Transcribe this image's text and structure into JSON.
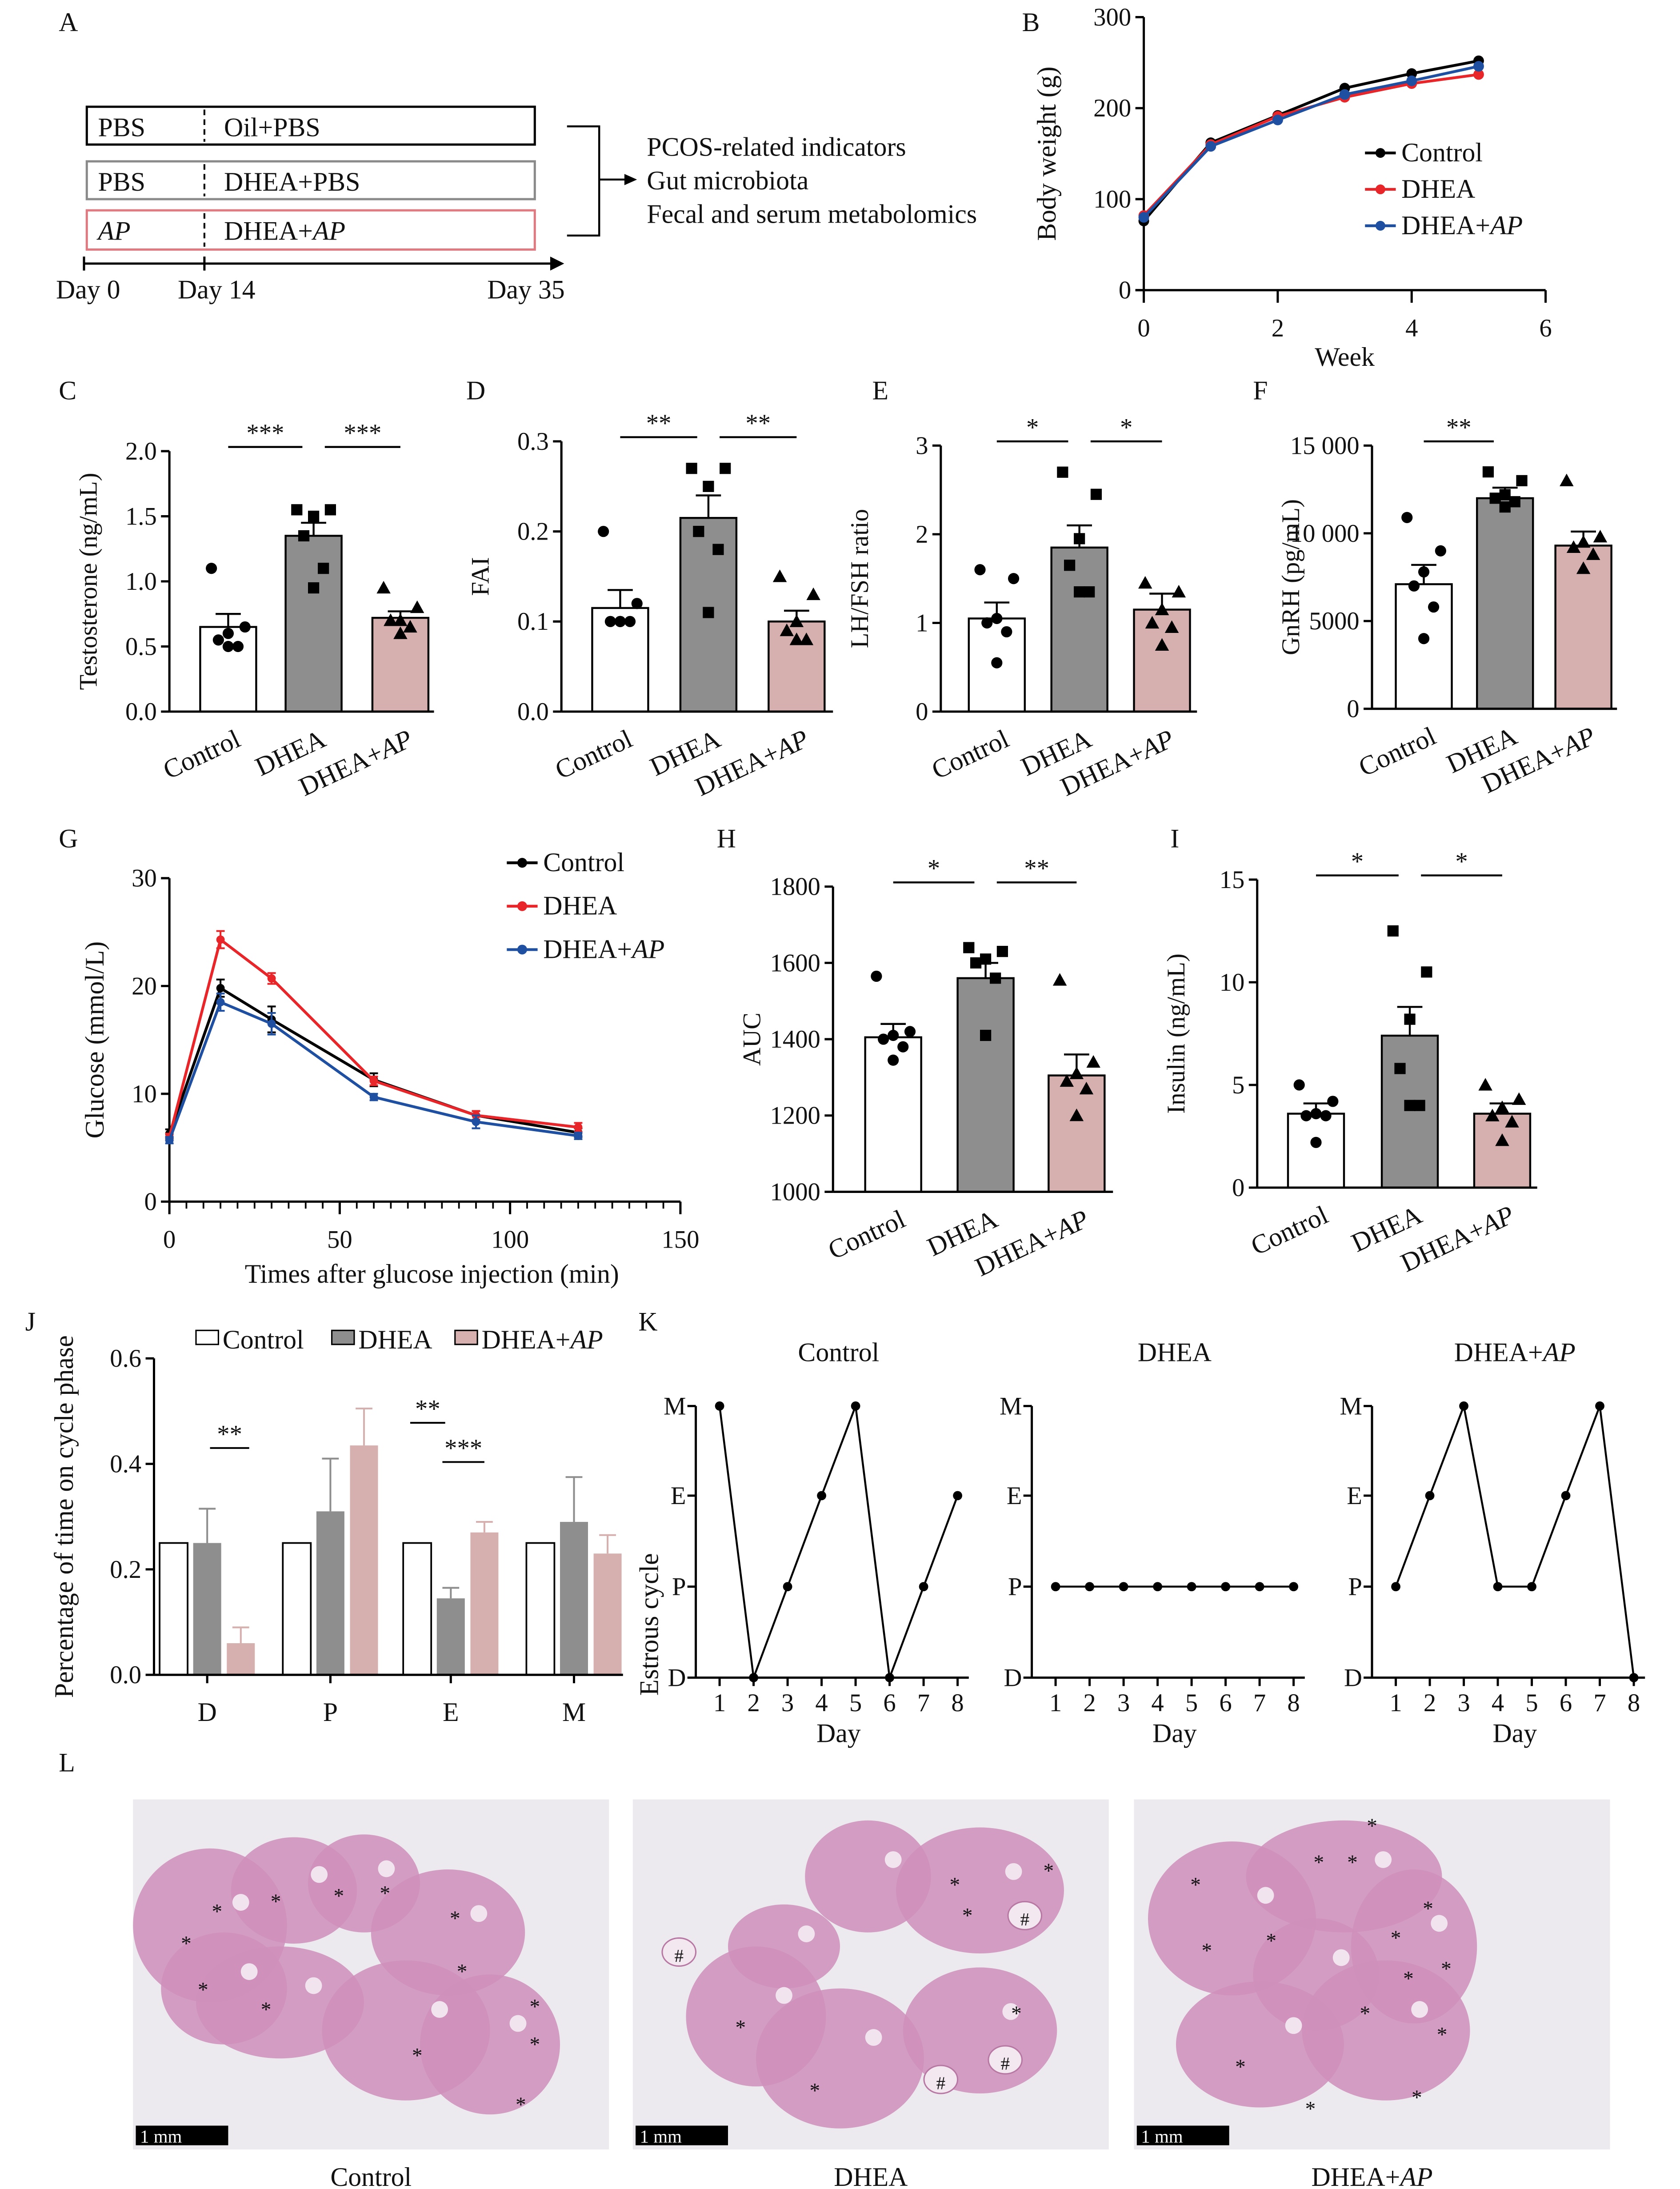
{
  "panel_letters": [
    "A",
    "B",
    "C",
    "D",
    "E",
    "F",
    "G",
    "H",
    "I",
    "J",
    "K",
    "L"
  ],
  "group_colors": {
    "Control": "#ffffff",
    "DHEA": "#8e8e8e",
    "DHEA+AP": "#d6b0ae"
  },
  "line_colors": {
    "Control": "#000000",
    "DHEA": "#e8262a",
    "DHEA+AP": "#1f4fa0"
  },
  "panel_a": {
    "rows": [
      {
        "pre": "PBS",
        "treat": "Oil+PBS",
        "border": "#000000"
      },
      {
        "pre": "PBS",
        "treat": "DHEA+PBS",
        "border": "#8a8a8a"
      },
      {
        "pre": "AP",
        "treat": "DHEA+AP",
        "border": "#e07a80"
      }
    ],
    "timeline": [
      "Day 0",
      "Day 14",
      "Day 35"
    ],
    "outcomes": [
      "PCOS-related indicators",
      "Gut microbiota",
      "Fecal and serum metabolomics"
    ]
  },
  "chart_data": [
    {
      "panel": "B",
      "type": "line",
      "xlabel": "Week",
      "ylabel": "Body weight (g)",
      "xlim": [
        0,
        6
      ],
      "ylim": [
        0,
        300
      ],
      "xticks": [
        0,
        2,
        4,
        6
      ],
      "xtick_labels": [
        "0",
        "2",
        "4",
        "6"
      ],
      "yticks": [
        0,
        100,
        200,
        300
      ],
      "ytick_labels": [
        "0",
        "100",
        "200",
        "300"
      ],
      "legend": "right",
      "x": [
        0,
        1,
        2,
        3,
        4,
        5
      ],
      "series": [
        {
          "name": "Control",
          "values": [
            76,
            162,
            192,
            222,
            238,
            252
          ]
        },
        {
          "name": "DHEA",
          "values": [
            82,
            160,
            191,
            212,
            227,
            237
          ]
        },
        {
          "name": "DHEA+AP",
          "values": [
            80,
            158,
            187,
            215,
            230,
            246
          ]
        }
      ]
    },
    {
      "panel": "C",
      "type": "bar",
      "ylabel": "Testosterone (ng/mL)",
      "ylim": [
        0,
        2
      ],
      "yticks": [
        0,
        0.5,
        1,
        1.5,
        2
      ],
      "ytick_labels": [
        "0.0",
        "0.5",
        "1.0",
        "1.5",
        "2.0"
      ],
      "groups": [
        {
          "name": "Control",
          "mean": 0.65,
          "sem": 0.1,
          "points": [
            1.1,
            0.65,
            0.6,
            0.55,
            0.5,
            0.5
          ]
        },
        {
          "name": "DHEA",
          "mean": 1.35,
          "sem": 0.1,
          "points": [
            1.55,
            1.55,
            1.5,
            1.35,
            1.1,
            0.95
          ]
        },
        {
          "name": "DHEA+AP",
          "mean": 0.72,
          "sem": 0.05,
          "points": [
            0.95,
            0.8,
            0.7,
            0.7,
            0.65,
            0.6
          ]
        }
      ],
      "significance": [
        {
          "from": 0,
          "to": 1,
          "label": "***"
        },
        {
          "from": 1,
          "to": 2,
          "label": "***"
        }
      ]
    },
    {
      "panel": "D",
      "type": "bar",
      "ylabel": "FAI",
      "ylim": [
        0,
        0.3
      ],
      "yticks": [
        0,
        0.1,
        0.2,
        0.3
      ],
      "ytick_labels": [
        "0.0",
        "0.1",
        "0.2",
        "0.3"
      ],
      "groups": [
        {
          "name": "Control",
          "mean": 0.115,
          "sem": 0.02,
          "points": [
            0.2,
            0.12,
            0.1,
            0.1,
            0.1,
            0.1
          ]
        },
        {
          "name": "DHEA",
          "mean": 0.215,
          "sem": 0.025,
          "points": [
            0.27,
            0.27,
            0.25,
            0.2,
            0.18,
            0.11
          ]
        },
        {
          "name": "DHEA+AP",
          "mean": 0.1,
          "sem": 0.012,
          "points": [
            0.15,
            0.13,
            0.1,
            0.09,
            0.08,
            0.08
          ]
        }
      ],
      "significance": [
        {
          "from": 0,
          "to": 1,
          "label": "**"
        },
        {
          "from": 1,
          "to": 2,
          "label": "**"
        }
      ]
    },
    {
      "panel": "E",
      "type": "bar",
      "ylabel": "LH/FSH ratio",
      "ylim": [
        0,
        3
      ],
      "yticks": [
        0,
        1,
        2,
        3
      ],
      "ytick_labels": [
        "0",
        "1",
        "2",
        "3"
      ],
      "groups": [
        {
          "name": "Control",
          "mean": 1.05,
          "sem": 0.18,
          "points": [
            1.6,
            1.5,
            1.05,
            1.0,
            0.9,
            0.55
          ]
        },
        {
          "name": "DHEA",
          "mean": 1.85,
          "sem": 0.25,
          "points": [
            2.7,
            2.45,
            1.95,
            1.65,
            1.35,
            1.35
          ]
        },
        {
          "name": "DHEA+AP",
          "mean": 1.15,
          "sem": 0.18,
          "points": [
            1.45,
            1.35,
            1.15,
            1.0,
            0.95,
            0.75
          ]
        }
      ],
      "significance": [
        {
          "from": 0,
          "to": 1,
          "label": "*"
        },
        {
          "from": 1,
          "to": 2,
          "label": "*"
        }
      ]
    },
    {
      "panel": "F",
      "type": "bar",
      "ylabel": "GnRH (pg/mL)",
      "ylim": [
        0,
        15000
      ],
      "yticks": [
        0,
        5000,
        10000,
        15000
      ],
      "ytick_labels": [
        "0",
        "5000",
        "10 000",
        "15 000"
      ],
      "groups": [
        {
          "name": "Control",
          "mean": 7100,
          "sem": 1100,
          "points": [
            10900,
            9000,
            7800,
            7000,
            5800,
            4000
          ]
        },
        {
          "name": "DHEA",
          "mean": 12000,
          "sem": 600,
          "points": [
            13500,
            13000,
            12200,
            12000,
            11800,
            11500
          ]
        },
        {
          "name": "DHEA+AP",
          "mean": 9300,
          "sem": 800,
          "points": [
            13000,
            9800,
            9500,
            9200,
            8800,
            8000
          ]
        }
      ],
      "significance": [
        {
          "from": 0,
          "to": 1,
          "label": "**"
        }
      ]
    },
    {
      "panel": "G",
      "type": "line",
      "xlabel": "Times after glucose injection (min)",
      "ylabel": "Glucose (mmol/L)",
      "xlim": [
        0,
        150
      ],
      "ylim": [
        0,
        30
      ],
      "xticks": [
        0,
        50,
        100,
        150
      ],
      "xtick_labels": [
        "0",
        "50",
        "100",
        "150"
      ],
      "yticks": [
        0,
        10,
        20,
        30
      ],
      "ytick_labels": [
        "0",
        "10",
        "20",
        "30"
      ],
      "legend": "top-right",
      "x": [
        0,
        15,
        30,
        60,
        90,
        120
      ],
      "series": [
        {
          "name": "Control",
          "values": [
            6.3,
            19.8,
            16.9,
            11.3,
            8.0,
            6.4
          ],
          "sem": [
            0.4,
            0.8,
            1.2,
            0.6,
            0.4,
            0.4
          ]
        },
        {
          "name": "DHEA",
          "values": [
            6.0,
            24.3,
            20.7,
            11.2,
            8.0,
            6.9
          ],
          "sem": [
            0.3,
            0.8,
            0.5,
            0.4,
            0.4,
            0.4
          ]
        },
        {
          "name": "DHEA+AP",
          "values": [
            5.7,
            18.5,
            16.5,
            9.7,
            7.4,
            6.1
          ],
          "sem": [
            0.3,
            0.8,
            1.0,
            0.3,
            0.6,
            0.3
          ]
        }
      ]
    },
    {
      "panel": "H",
      "type": "bar",
      "ylabel": "AUC",
      "ylim": [
        1000,
        1800
      ],
      "yticks": [
        1000,
        1200,
        1400,
        1600,
        1800
      ],
      "ytick_labels": [
        "1000",
        "1200",
        "1400",
        "1600",
        "1800"
      ],
      "groups": [
        {
          "name": "Control",
          "mean": 1405,
          "sem": 35,
          "points": [
            1565,
            1420,
            1410,
            1400,
            1380,
            1345
          ]
        },
        {
          "name": "DHEA",
          "mean": 1560,
          "sem": 40,
          "points": [
            1640,
            1630,
            1610,
            1600,
            1560,
            1410
          ]
        },
        {
          "name": "DHEA+AP",
          "mean": 1305,
          "sem": 55,
          "points": [
            1555,
            1340,
            1310,
            1290,
            1270,
            1200
          ]
        }
      ],
      "significance": [
        {
          "from": 0,
          "to": 1,
          "label": "*"
        },
        {
          "from": 1,
          "to": 2,
          "label": "**"
        }
      ]
    },
    {
      "panel": "I",
      "type": "bar",
      "ylabel": "Insulin (ng/mL)",
      "ylim": [
        0,
        15
      ],
      "yticks": [
        0,
        5,
        10,
        15
      ],
      "ytick_labels": [
        "0",
        "5",
        "10",
        "15"
      ],
      "groups": [
        {
          "name": "Control",
          "mean": 3.6,
          "sem": 0.5,
          "points": [
            5.0,
            4.2,
            3.6,
            3.5,
            3.5,
            2.2
          ]
        },
        {
          "name": "DHEA",
          "mean": 7.4,
          "sem": 1.4,
          "points": [
            12.5,
            10.5,
            8.2,
            5.8,
            4.0,
            4.0
          ]
        },
        {
          "name": "DHEA+AP",
          "mean": 3.6,
          "sem": 0.5,
          "points": [
            5.0,
            4.3,
            3.9,
            3.5,
            3.2,
            2.3
          ]
        }
      ],
      "significance": [
        {
          "from": 0,
          "to": 1,
          "label": "*"
        },
        {
          "from": 1,
          "to": 2,
          "label": "*"
        }
      ]
    },
    {
      "panel": "J",
      "type": "bar",
      "ylabel": "Percentage of time on cycle phase",
      "ylim": [
        0,
        0.6
      ],
      "yticks": [
        0,
        0.2,
        0.4,
        0.6
      ],
      "ytick_labels": [
        "0.0",
        "0.2",
        "0.4",
        "0.6"
      ],
      "legend": "top",
      "categories": [
        "D",
        "P",
        "E",
        "M"
      ],
      "series": [
        {
          "name": "Control",
          "values": [
            0.25,
            0.25,
            0.25,
            0.25
          ],
          "sem": [
            0,
            0,
            0,
            0
          ]
        },
        {
          "name": "DHEA",
          "values": [
            0.25,
            0.31,
            0.145,
            0.29
          ],
          "sem": [
            0.065,
            0.1,
            0.02,
            0.085
          ]
        },
        {
          "name": "DHEA+AP",
          "values": [
            0.06,
            0.435,
            0.27,
            0.23
          ],
          "sem": [
            0.03,
            0.07,
            0.02,
            0.035
          ]
        }
      ],
      "significance": [
        {
          "category": 0,
          "from": 1,
          "to": 2,
          "label": "**"
        },
        {
          "category": 2,
          "from": 0,
          "to": 1,
          "label": "**"
        },
        {
          "category": 2,
          "from": 1,
          "to": 2,
          "label": "***"
        }
      ]
    },
    {
      "panel": "K",
      "type": "line",
      "ylabel": "Estrous cycle",
      "xlabel": "Day",
      "x": [
        1,
        2,
        3,
        4,
        5,
        6,
        7,
        8
      ],
      "xtick_labels": [
        "1",
        "2",
        "3",
        "4",
        "5",
        "6",
        "7",
        "8"
      ],
      "ytick_labels": [
        "D",
        "P",
        "E",
        "M"
      ],
      "plots": [
        {
          "title": "Control",
          "values": [
            "M",
            "D",
            "P",
            "E",
            "M",
            "D",
            "P",
            "E"
          ]
        },
        {
          "title": "DHEA",
          "values": [
            "P",
            "P",
            "P",
            "P",
            "P",
            "P",
            "P",
            "P"
          ]
        },
        {
          "title": "DHEA+AP",
          "values": [
            "P",
            "E",
            "M",
            "P",
            "P",
            "E",
            "M",
            "D"
          ]
        }
      ]
    }
  ],
  "histology": {
    "images": [
      {
        "label": "Control",
        "scale_bar": "1 mm",
        "annotations": [
          "*",
          "*",
          "*",
          "*",
          "*",
          "*",
          "*",
          "*",
          "*",
          "*",
          "*",
          "*",
          "*"
        ]
      },
      {
        "label": "DHEA",
        "scale_bar": "1 mm",
        "annotations": [
          "*",
          "*",
          "*",
          "*",
          "*",
          "*",
          "#",
          "#",
          "#",
          "#"
        ]
      },
      {
        "label": "DHEA+AP",
        "scale_bar": "1 mm",
        "annotations": [
          "*",
          "*",
          "*",
          "*",
          "*",
          "*",
          "*",
          "*",
          "*",
          "*",
          "*",
          "*",
          "*",
          "*",
          "*"
        ]
      }
    ]
  }
}
